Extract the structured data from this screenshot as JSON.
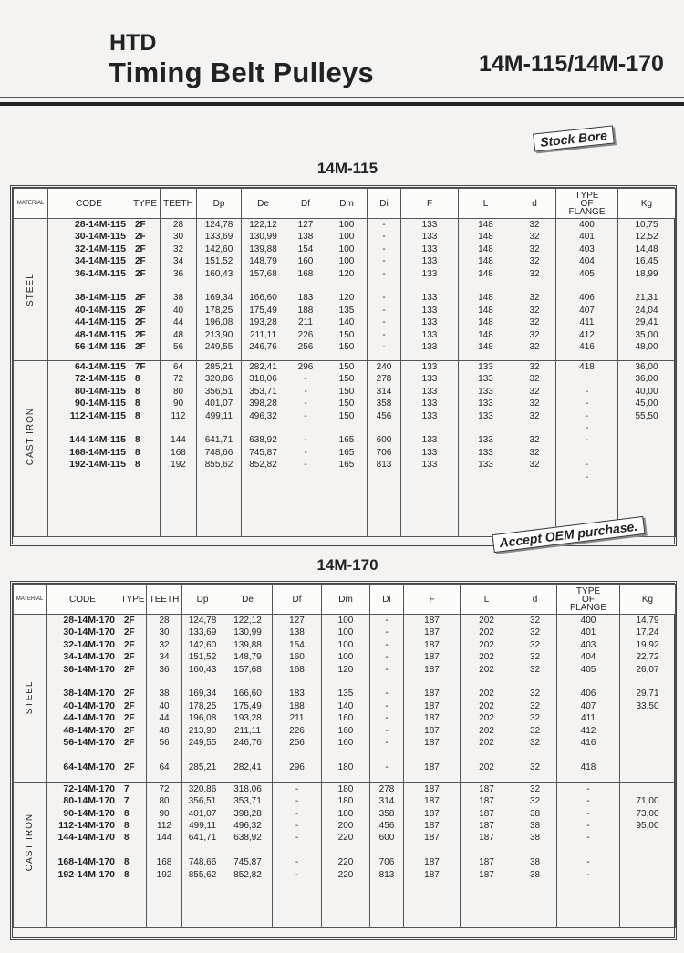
{
  "header": {
    "line1": "HTD",
    "line2": "Timing Belt Pulleys",
    "series": "14M-115/14M-170"
  },
  "stamps": {
    "stock_bore": "Stock Bore",
    "oem": "Accept OEM purchase."
  },
  "columns": [
    "MATERIAL",
    "CODE",
    "TYPE",
    "TEETH",
    "Dp",
    "De",
    "Df",
    "Dm",
    "Di",
    "F",
    "L",
    "d",
    "TYPE OF FLANGE",
    "Kg"
  ],
  "tables": [
    {
      "title": "14M-115",
      "groups": [
        {
          "material": "STEEL",
          "rows": [
            [
              "28-14M-115",
              "2F",
              "28",
              "124,78",
              "122,12",
              "127",
              "100",
              "-",
              "133",
              "148",
              "32",
              "400",
              "10,75"
            ],
            [
              "30-14M-115",
              "2F",
              "30",
              "133,69",
              "130,99",
              "138",
              "100",
              "-",
              "133",
              "148",
              "32",
              "401",
              "12,52"
            ],
            [
              "32-14M-115",
              "2F",
              "32",
              "142,60",
              "139,88",
              "154",
              "100",
              "-",
              "133",
              "148",
              "32",
              "403",
              "14,48"
            ],
            [
              "34-14M-115",
              "2F",
              "34",
              "151,52",
              "148,79",
              "160",
              "100",
              "-",
              "133",
              "148",
              "32",
              "404",
              "16,45"
            ],
            [
              "36-14M-115",
              "2F",
              "36",
              "160,43",
              "157,68",
              "168",
              "120",
              "-",
              "133",
              "148",
              "32",
              "405",
              "18,99"
            ],
            null,
            [
              "38-14M-115",
              "2F",
              "38",
              "169,34",
              "166,60",
              "183",
              "120",
              "-",
              "133",
              "148",
              "32",
              "406",
              "21,31"
            ],
            [
              "40-14M-115",
              "2F",
              "40",
              "178,25",
              "175,49",
              "188",
              "135",
              "-",
              "133",
              "148",
              "32",
              "407",
              "24,04"
            ],
            [
              "44-14M-115",
              "2F",
              "44",
              "196,08",
              "193,28",
              "211",
              "140",
              "-",
              "133",
              "148",
              "32",
              "411",
              "29,41"
            ],
            [
              "48-14M-115",
              "2F",
              "48",
              "213,90",
              "211,11",
              "226",
              "150",
              "-",
              "133",
              "148",
              "32",
              "412",
              "35,00"
            ],
            [
              "56-14M-115",
              "2F",
              "56",
              "249,55",
              "246,76",
              "256",
              "150",
              "-",
              "133",
              "148",
              "32",
              "416",
              "48,00"
            ]
          ]
        },
        {
          "material": "CAST IRON",
          "rows": [
            [
              "64-14M-115",
              "7F",
              "64",
              "285,21",
              "282,41",
              "296",
              "150",
              "240",
              "133",
              "133",
              "32",
              "418",
              "36,00"
            ],
            [
              "72-14M-115",
              "8",
              "72",
              "320,86",
              "318,06",
              "-",
              "150",
              "278",
              "133",
              "133",
              "32",
              "",
              "36,00"
            ],
            [
              "80-14M-115",
              "8",
              "80",
              "356,51",
              "353,71",
              "-",
              "150",
              "314",
              "133",
              "133",
              "32",
              "-",
              "40,00"
            ],
            [
              "90-14M-115",
              "8",
              "90",
              "401,07",
              "398,28",
              "-",
              "150",
              "358",
              "133",
              "133",
              "32",
              "-",
              "45,00"
            ],
            [
              "112-14M-115",
              "8",
              "112",
              "499,11",
              "496,32",
              "-",
              "150",
              "456",
              "133",
              "133",
              "32",
              "-",
              "55,50"
            ],
            [
              "",
              "",
              "",
              "",
              "",
              "",
              "",
              "",
              "",
              "",
              "",
              "-",
              ""
            ],
            [
              "144-14M-115",
              "8",
              "144",
              "641,71",
              "638,92",
              "-",
              "165",
              "600",
              "133",
              "133",
              "32",
              "-",
              ""
            ],
            [
              "168-14M-115",
              "8",
              "168",
              "748,66",
              "745,87",
              "-",
              "165",
              "706",
              "133",
              "133",
              "32",
              "",
              ""
            ],
            [
              "192-14M-115",
              "8",
              "192",
              "855,62",
              "852,82",
              "-",
              "165",
              "813",
              "133",
              "133",
              "32",
              "-",
              ""
            ],
            [
              "",
              "",
              "",
              "",
              "",
              "",
              "",
              "",
              "",
              "",
              "",
              "-",
              ""
            ]
          ]
        }
      ]
    },
    {
      "title": "14M-170",
      "groups": [
        {
          "material": "STEEL",
          "rows": [
            [
              "28-14M-170",
              "2F",
              "28",
              "124,78",
              "122,12",
              "127",
              "100",
              "-",
              "187",
              "202",
              "32",
              "400",
              "14,79"
            ],
            [
              "30-14M-170",
              "2F",
              "30",
              "133,69",
              "130,99",
              "138",
              "100",
              "-",
              "187",
              "202",
              "32",
              "401",
              "17,24"
            ],
            [
              "32-14M-170",
              "2F",
              "32",
              "142,60",
              "139,88",
              "154",
              "100",
              "-",
              "187",
              "202",
              "32",
              "403",
              "19,92"
            ],
            [
              "34-14M-170",
              "2F",
              "34",
              "151,52",
              "148,79",
              "160",
              "100",
              "-",
              "187",
              "202",
              "32",
              "404",
              "22,72"
            ],
            [
              "36-14M-170",
              "2F",
              "36",
              "160,43",
              "157,68",
              "168",
              "120",
              "-",
              "187",
              "202",
              "32",
              "405",
              "26,07"
            ],
            null,
            [
              "38-14M-170",
              "2F",
              "38",
              "169,34",
              "166,60",
              "183",
              "135",
              "-",
              "187",
              "202",
              "32",
              "406",
              "29,71"
            ],
            [
              "40-14M-170",
              "2F",
              "40",
              "178,25",
              "175,49",
              "188",
              "140",
              "-",
              "187",
              "202",
              "32",
              "407",
              "33,50"
            ],
            [
              "44-14M-170",
              "2F",
              "44",
              "196,08",
              "193,28",
              "211",
              "160",
              "-",
              "187",
              "202",
              "32",
              "411",
              ""
            ],
            [
              "48-14M-170",
              "2F",
              "48",
              "213,90",
              "211,11",
              "226",
              "160",
              "-",
              "187",
              "202",
              "32",
              "412",
              ""
            ],
            [
              "56-14M-170",
              "2F",
              "56",
              "249,55",
              "246,76",
              "256",
              "160",
              "-",
              "187",
              "202",
              "32",
              "416",
              ""
            ],
            null,
            [
              "64-14M-170",
              "2F",
              "64",
              "285,21",
              "282,41",
              "296",
              "180",
              "-",
              "187",
              "202",
              "32",
              "418",
              ""
            ]
          ]
        },
        {
          "material": "CAST IRON",
          "rows": [
            [
              "72-14M-170",
              "7",
              "72",
              "320,86",
              "318,06",
              "-",
              "180",
              "278",
              "187",
              "187",
              "32",
              "-",
              ""
            ],
            [
              "80-14M-170",
              "7",
              "80",
              "356,51",
              "353,71",
              "-",
              "180",
              "314",
              "187",
              "187",
              "32",
              "-",
              "71,00"
            ],
            [
              "90-14M-170",
              "8",
              "90",
              "401,07",
              "398,28",
              "-",
              "180",
              "358",
              "187",
              "187",
              "38",
              "-",
              "73,00"
            ],
            [
              "112-14M-170",
              "8",
              "112",
              "499,11",
              "496,32",
              "-",
              "200",
              "456",
              "187",
              "187",
              "38",
              "-",
              "95,00"
            ],
            [
              "144-14M-170",
              "8",
              "144",
              "641,71",
              "638,92",
              "-",
              "220",
              "600",
              "187",
              "187",
              "38",
              "-",
              ""
            ],
            null,
            [
              "168-14M-170",
              "8",
              "168",
              "748,66",
              "745,87",
              "-",
              "220",
              "706",
              "187",
              "187",
              "38",
              "-",
              ""
            ],
            [
              "192-14M-170",
              "8",
              "192",
              "855,62",
              "852,82",
              "-",
              "220",
              "813",
              "187",
              "187",
              "38",
              "-",
              ""
            ]
          ]
        }
      ]
    }
  ]
}
